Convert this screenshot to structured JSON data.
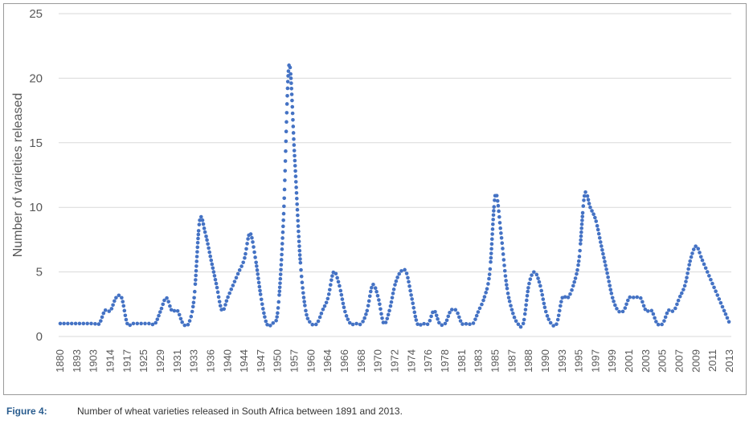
{
  "figure": {
    "label": "Figure 4:",
    "caption": "Number of wheat varieties released in South Africa between 1891 and 2013."
  },
  "chart_data": {
    "type": "line",
    "line_style": "dotted",
    "series_color": "#4472c4",
    "grid": "horizontal",
    "ylabel": "Number of varieties released",
    "xlabel": "",
    "ylim": [
      0,
      25
    ],
    "yticks": [
      0,
      5,
      10,
      15,
      20,
      25
    ],
    "categories": [
      "1880",
      "1893",
      "1903",
      "1914",
      "1917",
      "1925",
      "1929",
      "1931",
      "1933",
      "1936",
      "1940",
      "1944",
      "1947",
      "1950",
      "1957",
      "1960",
      "1964",
      "1966",
      "1968",
      "1970",
      "1972",
      "1974",
      "1976",
      "1978",
      "1981",
      "1983",
      "1985",
      "1987",
      "1988",
      "1990",
      "1993",
      "1995",
      "1997",
      "1999",
      "2001",
      "2003",
      "2005",
      "2007",
      "2009",
      "2011",
      "2013"
    ],
    "x": [
      0,
      1,
      2,
      3,
      4,
      5,
      6,
      7,
      8,
      9,
      10,
      11,
      12,
      13,
      14,
      15,
      16,
      17,
      18,
      19,
      20,
      21,
      22,
      23,
      24,
      25,
      26,
      27,
      28,
      29,
      30,
      31,
      32,
      33,
      34,
      35,
      36,
      37,
      38,
      39,
      40,
      41,
      42,
      43,
      44,
      45,
      46,
      47,
      48,
      49,
      50,
      51,
      52,
      53,
      54,
      55,
      56,
      57,
      58,
      59,
      60,
      61,
      62,
      63,
      64,
      65,
      66,
      67,
      68,
      69,
      70,
      71,
      72,
      73,
      74,
      75,
      76,
      77,
      78,
      79,
      80,
      81,
      82,
      83,
      84,
      85,
      86,
      87,
      88,
      89,
      90,
      91,
      92,
      93,
      94,
      95,
      96,
      97,
      98,
      99,
      100,
      101,
      102,
      103,
      104,
      105,
      106,
      107,
      108,
      109,
      110,
      111,
      112,
      113,
      114,
      115,
      116,
      117,
      118,
      119,
      120
    ],
    "values": [
      1,
      1,
      1,
      1,
      1,
      1,
      1,
      1,
      2,
      2,
      3,
      3,
      1,
      1,
      1,
      1,
      1,
      1,
      2,
      3,
      2,
      2,
      1,
      1,
      3,
      9,
      8,
      6,
      4,
      2,
      3,
      4,
      5,
      6,
      8,
      6,
      3,
      1,
      1,
      2,
      9,
      21,
      14,
      6,
      2,
      1,
      1,
      2,
      3,
      5,
      4,
      2,
      1,
      1,
      1,
      2,
      4,
      3,
      1,
      2,
      4,
      5,
      5,
      3,
      1,
      1,
      1,
      2,
      1,
      1,
      2,
      2,
      1,
      1,
      1,
      2,
      3,
      5,
      11,
      8,
      4,
      2,
      1,
      1,
      4,
      5,
      4,
      2,
      1,
      1,
      3,
      3,
      4,
      6,
      11,
      10,
      9,
      7,
      5,
      3,
      2,
      2,
      3,
      3,
      3,
      2,
      2,
      1,
      1,
      2,
      2,
      3,
      4,
      6,
      7,
      6,
      5,
      4,
      3,
      2,
      1
    ],
    "values_note_unused": null
  }
}
